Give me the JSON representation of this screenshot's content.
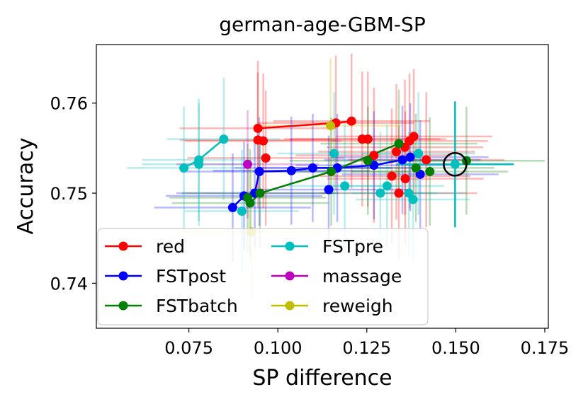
{
  "chart_data": {
    "type": "scatter",
    "title": "german-age-GBM-SP",
    "xlabel": "SP difference",
    "ylabel": "Accuracy",
    "xlim": [
      0.049,
      0.176
    ],
    "ylim": [
      0.735,
      0.7665
    ],
    "xticks": [
      0.075,
      0.1,
      0.125,
      0.15,
      0.175
    ],
    "xtick_labels": [
      "0.075",
      "0.100",
      "0.125",
      "0.150",
      "0.175"
    ],
    "yticks": [
      0.74,
      0.75,
      0.76
    ],
    "ytick_labels": [
      "0.74",
      "0.75",
      "0.76"
    ],
    "legend_position": "lower-left",
    "highlight": {
      "x": 0.1498,
      "y": 0.7532,
      "label": "circled point"
    },
    "series": [
      {
        "name": "red",
        "color": "#ff0000",
        "line": [
          [
            0.0944,
            0.7572
          ],
          [
            0.1163,
            0.7578
          ],
          [
            0.1207,
            0.758
          ]
        ],
        "points": [
          [
            0.0944,
            0.7559
          ],
          [
            0.0959,
            0.7558
          ],
          [
            0.0966,
            0.7539
          ],
          [
            0.1237,
            0.756
          ],
          [
            0.1253,
            0.756
          ],
          [
            0.127,
            0.7542
          ],
          [
            0.132,
            0.7519
          ],
          [
            0.1333,
            0.7546
          ],
          [
            0.1357,
            0.7551
          ],
          [
            0.137,
            0.7558
          ],
          [
            0.1382,
            0.7563
          ],
          [
            0.1358,
            0.7516
          ],
          [
            0.134,
            0.75
          ],
          [
            0.1417,
            0.7537
          ]
        ],
        "xerr": 0.022,
        "yerr": 0.0075
      },
      {
        "name": "FSTpost",
        "color": "#0000ff",
        "line": [
          [
            0.0873,
            0.7484
          ],
          [
            0.0905,
            0.7497
          ],
          [
            0.0935,
            0.75
          ],
          [
            0.0948,
            0.7524
          ],
          [
            0.1038,
            0.7525
          ],
          [
            0.1098,
            0.7528
          ],
          [
            0.1167,
            0.7528
          ],
          [
            0.127,
            0.7531
          ],
          [
            0.135,
            0.7537
          ],
          [
            0.1372,
            0.754
          ]
        ],
        "points": [
          [
            0.1143,
            0.7504
          ],
          [
            0.14,
            0.7521
          ]
        ],
        "xerr": 0.022,
        "yerr": 0.006
      },
      {
        "name": "FSTbatch",
        "color": "#007f00",
        "line": [
          [
            0.0922,
            0.7489
          ],
          [
            0.095,
            0.75
          ],
          [
            0.115,
            0.7524
          ],
          [
            0.134,
            0.7555
          ]
        ],
        "points": [
          [
            0.0915,
            0.7495
          ],
          [
            0.1253,
            0.7536
          ],
          [
            0.1388,
            0.7528
          ],
          [
            0.1427,
            0.7524
          ],
          [
            0.153,
            0.7536
          ]
        ],
        "xerr": 0.022,
        "yerr": 0.006
      },
      {
        "name": "FSTpre",
        "color": "#00bfbf",
        "line": [
          [
            0.0736,
            0.7528
          ],
          [
            0.0778,
            0.7537
          ],
          [
            0.0848,
            0.756
          ]
        ],
        "points": [
          [
            0.0778,
            0.7532
          ],
          [
            0.0899,
            0.748
          ],
          [
            0.1158,
            0.7544
          ],
          [
            0.1188,
            0.7508
          ],
          [
            0.1288,
            0.75
          ],
          [
            0.1307,
            0.7508
          ],
          [
            0.1368,
            0.75
          ],
          [
            0.138,
            0.7493
          ],
          [
            0.1395,
            0.7544
          ],
          [
            0.1498,
            0.7532
          ]
        ],
        "xerr": 0.016,
        "yerr": 0.0068
      },
      {
        "name": "massage",
        "color": "#bf00bf",
        "line": [],
        "points": [
          [
            0.0915,
            0.7532
          ]
        ],
        "xerr": 0.02,
        "yerr": 0.006
      },
      {
        "name": "reweigh",
        "color": "#bfbf00",
        "line": [],
        "points": [
          [
            0.1148,
            0.7575
          ],
          [
            0.0925,
            0.7457
          ]
        ],
        "xerr": 0.02,
        "yerr": 0.0075
      }
    ]
  }
}
